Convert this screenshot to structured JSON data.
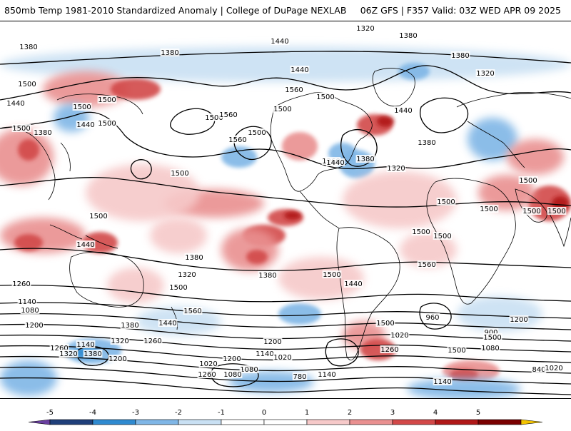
{
  "header": {
    "title_left": "850mb Temp 1981-2010 Standardized Anomaly | College of DuPage NEXLAB",
    "title_right": "06Z GFS | F357 Valid: 03Z WED APR 09 2025"
  },
  "colors": {
    "m5": "#6a3fa0",
    "m4": "#1f3f7a",
    "m3": "#2f8ad0",
    "m2": "#7fb6e6",
    "m1": "#c9e0f3",
    "zero": "#ffffff",
    "p1": "#f6c9c9",
    "p2": "#e99090",
    "p3": "#d24848",
    "p4": "#b01818",
    "p5": "#7a0000",
    "p6": "#f2c200"
  },
  "colorbar": {
    "labels": [
      "-5",
      "-4",
      "-3",
      "-2",
      "-1",
      "0",
      "1",
      "2",
      "3",
      "4",
      "5"
    ]
  },
  "contour_labels": [
    "1320",
    "1380",
    "1440",
    "1380",
    "1440",
    "1380",
    "1320",
    "1380",
    "1500",
    "1500",
    "1500",
    "1500",
    "1500",
    "1440",
    "1380",
    "1440",
    "1500",
    "1560",
    "1500",
    "1560",
    "1500",
    "1560",
    "1500",
    "1440",
    "1380",
    "1320",
    "1260",
    "1380",
    "1440",
    "1500",
    "1500",
    "1500",
    "1500",
    "1500",
    "1500",
    "1500",
    "1560",
    "1500",
    "1440",
    "1380",
    "1320",
    "1500",
    "1500",
    "1560",
    "1440",
    "1380",
    "1320",
    "1260",
    "1200",
    "1140",
    "1080",
    "1020",
    "960",
    "900",
    "840",
    "780",
    "1260",
    "1140",
    "1080",
    "1200",
    "1260",
    "1320",
    "1380",
    "1200",
    "1140",
    "1020",
    "1080",
    "1260",
    "1200",
    "1140",
    "1260",
    "1020",
    "1080",
    "1200",
    "1020",
    "1140",
    "1500",
    "1500",
    "1500",
    "1500",
    "1380",
    "1440"
  ]
}
